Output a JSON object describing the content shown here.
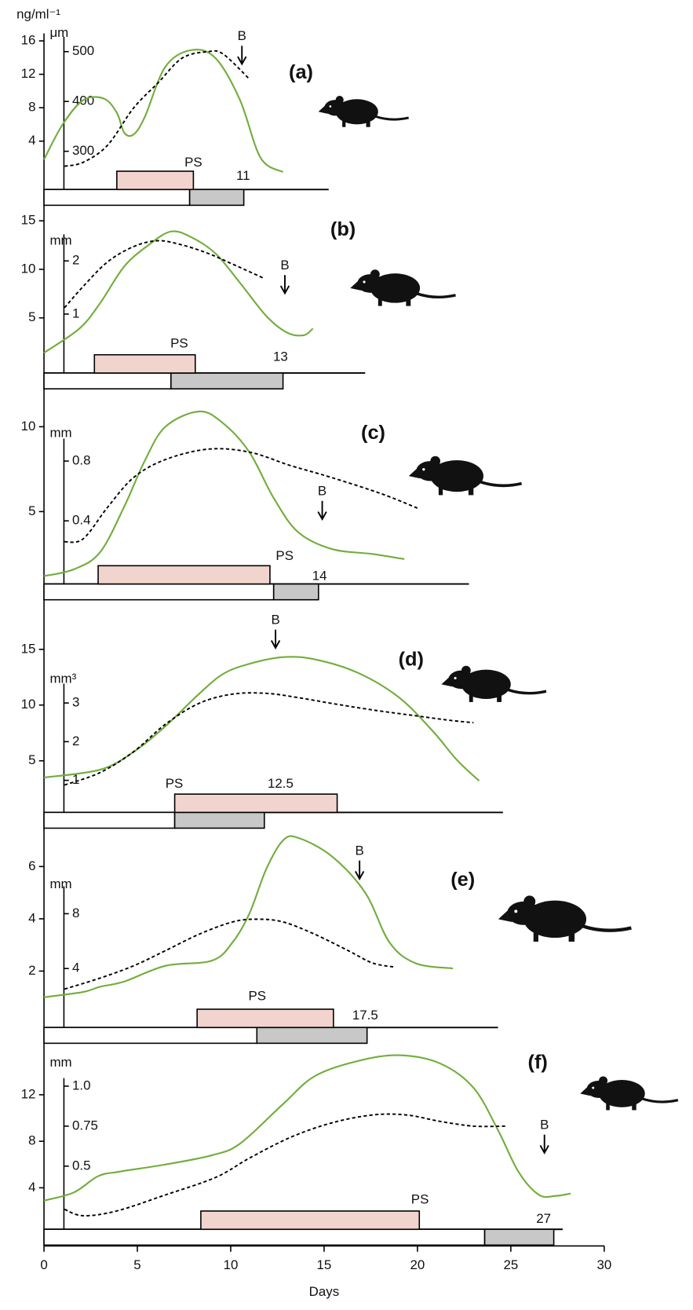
{
  "chart_data": [
    {
      "type": "line",
      "label": "(a)",
      "hormone_unit": "ng/ml⁻¹",
      "size_unit": "μm",
      "xlim": [
        0,
        30
      ],
      "ylim": [
        0,
        17
      ],
      "yticks": [
        4,
        8,
        12,
        16
      ],
      "y2lim": [
        250,
        530
      ],
      "y2ticks": [
        300,
        400,
        500
      ],
      "series": [
        {
          "color": "#72ad3c",
          "axis": "y",
          "style": "solid",
          "x": [
            0,
            1,
            2.1,
            3.2,
            3.9,
            4.3,
            4.8,
            5.4,
            6.5,
            7.9,
            9.2,
            10.5,
            11.6,
            12.8
          ],
          "values": [
            1.8,
            6,
            8.9,
            9.1,
            7.4,
            5,
            4.8,
            6.9,
            12.9,
            14.9,
            13.9,
            8.9,
            2,
            0.3
          ]
        },
        {
          "color": "#000000",
          "axis": "y2",
          "style": "dotted",
          "x": [
            1.1,
            2.1,
            3.4,
            4.8,
            6.1,
            7.4,
            8.8,
            9.6,
            11
          ],
          "values": [
            270,
            278,
            312,
            387,
            437,
            487,
            500,
            495,
            445
          ]
        }
      ],
      "ps": {
        "label": "PS",
        "x": [
          3.9,
          8.0
        ],
        "color": "#f2d4cf"
      },
      "bars": [
        {
          "color": "#ffffff",
          "x": [
            0,
            7.8
          ]
        },
        {
          "color": "#c8c8c8",
          "x": [
            7.8,
            10.7
          ]
        }
      ],
      "gestation": 11,
      "birth": {
        "label": "B",
        "x": 10.6
      }
    },
    {
      "type": "line",
      "label": "(b)",
      "size_unit": "mm",
      "xlim": [
        0,
        30
      ],
      "ylim": [
        0,
        16
      ],
      "yticks": [
        5,
        10,
        15
      ],
      "y2lim": [
        0,
        2.5
      ],
      "y2ticks": [
        1,
        2
      ],
      "series": [
        {
          "color": "#72ad3c",
          "axis": "y",
          "style": "solid",
          "x": [
            0,
            1.9,
            3,
            4.3,
            5.6,
            6.8,
            7.9,
            9.2,
            10.5,
            11.9,
            13,
            13.9,
            14.4
          ],
          "values": [
            1.4,
            3.9,
            6.5,
            10.3,
            12.5,
            13.9,
            13.3,
            11.6,
            8.6,
            5.2,
            3.5,
            3.2,
            3.9
          ]
        },
        {
          "color": "#000000",
          "axis": "y2",
          "style": "dotted",
          "x": [
            1.1,
            2.1,
            3.4,
            4.8,
            6.1,
            7.4,
            8.8,
            10.1,
            11.8
          ],
          "values": [
            1.12,
            1.52,
            1.98,
            2.27,
            2.38,
            2.3,
            2.14,
            1.94,
            1.67
          ]
        }
      ],
      "ps": {
        "label": "PS",
        "x": [
          2.7,
          8.1
        ],
        "color": "#f2d4cf"
      },
      "bars": [
        {
          "color": "#ffffff",
          "x": [
            0,
            6.8
          ]
        },
        {
          "color": "#c8c8c8",
          "x": [
            6.8,
            12.8
          ]
        }
      ],
      "gestation": 13,
      "birth": {
        "label": "B",
        "x": 12.9
      }
    },
    {
      "type": "line",
      "label": "(c)",
      "size_unit": "mm",
      "xlim": [
        0,
        30
      ],
      "ylim": [
        0,
        11.5
      ],
      "yticks": [
        5,
        10
      ],
      "y2lim": [
        0,
        0.95
      ],
      "y2ticks": [
        0.4,
        0.8
      ],
      "series": [
        {
          "color": "#72ad3c",
          "axis": "y",
          "style": "solid",
          "x": [
            0,
            1.6,
            3,
            4.3,
            5.4,
            6.5,
            8.3,
            9.6,
            11,
            12.3,
            13.6,
            15.4,
            17.6,
            19.3
          ],
          "values": [
            1.2,
            1.6,
            2.6,
            5.3,
            8,
            10,
            10.9,
            10.2,
            8.5,
            5.8,
            3.8,
            2.8,
            2.5,
            2.2
          ]
        },
        {
          "color": "#000000",
          "axis": "y2",
          "style": "dotted",
          "x": [
            1.1,
            2.1,
            3.4,
            4.8,
            6.5,
            8.8,
            11,
            13.2,
            15.4,
            18.1,
            20.1
          ],
          "values": [
            0.26,
            0.28,
            0.49,
            0.69,
            0.81,
            0.88,
            0.86,
            0.77,
            0.69,
            0.58,
            0.48
          ]
        }
      ],
      "ps": {
        "label": "PS",
        "x": [
          2.9,
          12.1
        ],
        "color": "#f2d4cf"
      },
      "bars": [
        {
          "color": "#ffffff",
          "x": [
            0,
            12.3
          ]
        },
        {
          "color": "#c8c8c8",
          "x": [
            12.3,
            14.7
          ]
        }
      ],
      "gestation": 14,
      "birth": {
        "label": "B",
        "x": 14.9
      }
    },
    {
      "type": "line",
      "label": "(d)",
      "size_unit": "mm³",
      "xlim": [
        0,
        30
      ],
      "ylim": [
        0,
        19
      ],
      "yticks": [
        5,
        10,
        15
      ],
      "y2lim": [
        0,
        3.5
      ],
      "y2ticks": [
        1,
        2,
        3
      ],
      "series": [
        {
          "color": "#72ad3c",
          "axis": "y",
          "style": "solid",
          "x": [
            0,
            3,
            4.8,
            6.5,
            8.3,
            9.6,
            11,
            12.8,
            14.5,
            16.8,
            19,
            20.8,
            22.1,
            23.3
          ],
          "values": [
            3.5,
            4.2,
            5.8,
            8.1,
            11,
            12.8,
            13.7,
            14.3,
            14.1,
            12.9,
            10.7,
            7.7,
            5.1,
            3.2
          ]
        },
        {
          "color": "#000000",
          "axis": "y2",
          "style": "dotted",
          "x": [
            1.1,
            3,
            4.8,
            6.5,
            8.3,
            10.1,
            11.9,
            13.6,
            15.4,
            17.6,
            19.9,
            21.6,
            23
          ],
          "values": [
            0.88,
            1.2,
            1.74,
            2.45,
            2.99,
            3.23,
            3.25,
            3.14,
            2.99,
            2.82,
            2.67,
            2.56,
            2.49
          ]
        }
      ],
      "ps": {
        "label": "PS",
        "x": [
          7.0,
          15.7
        ],
        "color": "#f2d4cf"
      },
      "bars": [
        {
          "color": "#ffffff",
          "x": [
            0,
            7.0
          ]
        },
        {
          "color": "#c8c8c8",
          "x": [
            7.0,
            11.8
          ]
        }
      ],
      "gestation": 12.5,
      "birth": {
        "label": "B",
        "x": 12.4
      }
    },
    {
      "type": "line",
      "label": "(e)",
      "size_unit": "mm",
      "xlim": [
        0,
        30
      ],
      "ylim": [
        0,
        7.5
      ],
      "yticks": [
        2,
        4,
        6
      ],
      "y2lim": [
        0,
        10
      ],
      "y2ticks": [
        4,
        8
      ],
      "series": [
        {
          "color": "#72ad3c",
          "axis": "y",
          "style": "solid",
          "x": [
            0,
            2.1,
            3,
            4.3,
            6.5,
            9,
            10.1,
            11,
            11.9,
            12.8,
            13.6,
            15.4,
            17.2,
            18.5,
            19.9,
            21.9
          ],
          "values": [
            1,
            1.2,
            1.4,
            1.6,
            2.2,
            2.4,
            3.1,
            4.2,
            5.9,
            7,
            7.1,
            6.4,
            5,
            3.1,
            2.3,
            2.1
          ]
        },
        {
          "color": "#000000",
          "axis": "y2",
          "style": "dotted",
          "x": [
            1.1,
            3,
            4.8,
            6.5,
            8.3,
            10.1,
            11.4,
            12.8,
            14.5,
            16.3,
            17.6,
            18.8
          ],
          "values": [
            2.5,
            3.3,
            4.2,
            5.3,
            6.5,
            7.4,
            7.6,
            7.4,
            6.5,
            5.3,
            4.4,
            4.1
          ]
        }
      ],
      "ps": {
        "label": "PS",
        "x": [
          8.2,
          15.5
        ],
        "color": "#f2d4cf"
      },
      "bars": [
        {
          "color": "#ffffff",
          "x": [
            0,
            11.4
          ]
        },
        {
          "color": "#c8c8c8",
          "x": [
            11.4,
            17.3
          ]
        }
      ],
      "gestation": 17.5,
      "birth": {
        "label": "B",
        "x": 16.9
      }
    },
    {
      "type": "line",
      "label": "(f)",
      "size_unit": "mm",
      "xlim": [
        0,
        30
      ],
      "xticks": [
        0,
        5,
        10,
        15,
        20,
        25,
        30
      ],
      "xlabel": "Days",
      "ylim": [
        0,
        16
      ],
      "yticks": [
        4,
        8,
        12
      ],
      "y2lim": [
        0.1,
        1.05
      ],
      "y2ticks": [
        0.5,
        0.75,
        {
          "value": 1,
          "label": "1.0"
        }
      ],
      "series": [
        {
          "color": "#72ad3c",
          "axis": "y",
          "style": "solid",
          "x": [
            0,
            1.6,
            2.9,
            4.1,
            6.5,
            9,
            10.5,
            12.8,
            14.5,
            16.8,
            19,
            21.2,
            23,
            24.3,
            25.4,
            26.5,
            27.4,
            28.2
          ],
          "values": [
            2.9,
            3.6,
            5,
            5.4,
            6,
            6.8,
            7.8,
            11.2,
            13.6,
            14.9,
            15.4,
            14.7,
            12.6,
            9,
            5.4,
            3.4,
            3.3,
            3.5
          ]
        },
        {
          "color": "#000000",
          "axis": "y2",
          "style": "dotted",
          "x": [
            1.1,
            2.1,
            3.9,
            6.5,
            9.2,
            11,
            13.2,
            15.4,
            17.6,
            19.4,
            21.2,
            23,
            24.7
          ],
          "values": [
            0.23,
            0.19,
            0.22,
            0.32,
            0.43,
            0.55,
            0.68,
            0.77,
            0.82,
            0.82,
            0.78,
            0.75,
            0.75
          ]
        }
      ],
      "ps": {
        "label": "PS",
        "x": [
          8.4,
          20.1
        ],
        "color": "#f2d4cf"
      },
      "bars": [
        {
          "color": "#ffffff",
          "x": [
            0,
            23.6
          ]
        },
        {
          "color": "#c8c8c8",
          "x": [
            23.6,
            27.3
          ]
        }
      ],
      "gestation": 27,
      "birth": {
        "label": "B",
        "x": 26.8
      }
    }
  ]
}
